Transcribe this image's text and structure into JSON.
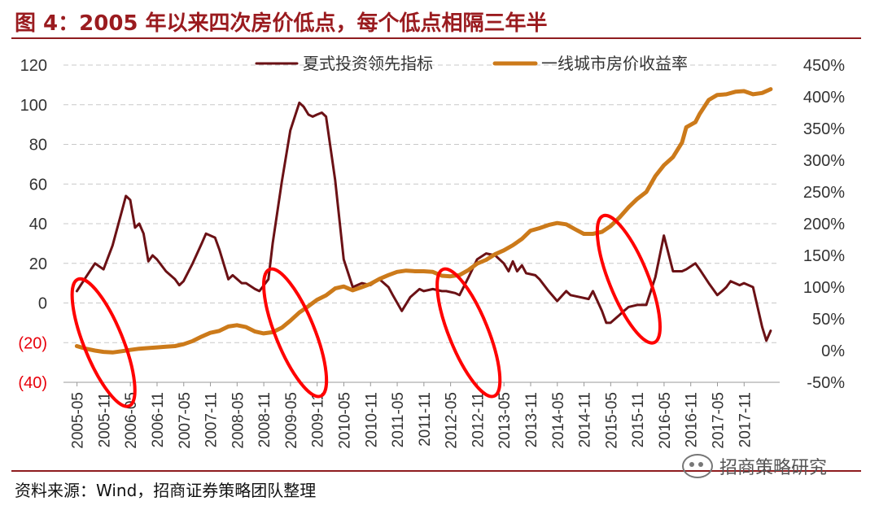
{
  "header": {
    "title": "图 4：2005 年以来四次房价低点，每个低点相隔三年半"
  },
  "footer": {
    "source": "资料来源：Wind，招商证券策略团队整理",
    "watermark": "招商策略研究"
  },
  "colors": {
    "title": "#9a1b1f",
    "rule": "#8f1c1f",
    "series_dark": "#6b1115",
    "series_orange": "#cc7a1a",
    "highlight": "#ff0000",
    "negative_tick": "#e8000b"
  },
  "chart_data": {
    "type": "line",
    "x": [
      "2005-05",
      "2005-11",
      "2006-05",
      "2006-11",
      "2007-05",
      "2007-11",
      "2008-05",
      "2008-11",
      "2009-05",
      "2009-11",
      "2010-05",
      "2010-11",
      "2011-05",
      "2011-11",
      "2012-05",
      "2012-11",
      "2013-05",
      "2013-11",
      "2014-05",
      "2014-11",
      "2015-05",
      "2015-11",
      "2016-05",
      "2016-11",
      "2017-05",
      "2017-11"
    ],
    "left_ticks": [
      "120",
      "100",
      "80",
      "60",
      "40",
      "20",
      "0",
      "(20)",
      "(40)"
    ],
    "right_ticks": [
      "450%",
      "400%",
      "350%",
      "300%",
      "250%",
      "200%",
      "150%",
      "100%",
      "50%",
      "0%",
      "-50%"
    ],
    "ylim_left": [
      -40,
      120
    ],
    "ylim_right": [
      -50,
      450
    ],
    "grid": "horizontal dashed",
    "legend_position": "top",
    "series": [
      {
        "name": "夏式投资领先指标",
        "axis": "left",
        "color": "#6b1115",
        "points": [
          [
            2005.33,
            6
          ],
          [
            2005.5,
            13
          ],
          [
            2005.67,
            20
          ],
          [
            2005.83,
            17
          ],
          [
            2006.0,
            29
          ],
          [
            2006.17,
            46
          ],
          [
            2006.25,
            54
          ],
          [
            2006.33,
            52
          ],
          [
            2006.42,
            38
          ],
          [
            2006.5,
            40
          ],
          [
            2006.58,
            35
          ],
          [
            2006.67,
            21
          ],
          [
            2006.75,
            24
          ],
          [
            2006.83,
            22
          ],
          [
            2007.0,
            16
          ],
          [
            2007.17,
            12
          ],
          [
            2007.25,
            9
          ],
          [
            2007.33,
            11
          ],
          [
            2007.5,
            20
          ],
          [
            2007.67,
            30
          ],
          [
            2007.75,
            35
          ],
          [
            2007.92,
            33
          ],
          [
            2008.0,
            27
          ],
          [
            2008.17,
            12
          ],
          [
            2008.25,
            14
          ],
          [
            2008.42,
            10
          ],
          [
            2008.5,
            10
          ],
          [
            2008.67,
            7
          ],
          [
            2008.75,
            6
          ],
          [
            2008.92,
            12
          ],
          [
            2009.0,
            30
          ],
          [
            2009.17,
            61
          ],
          [
            2009.33,
            87
          ],
          [
            2009.5,
            101
          ],
          [
            2009.58,
            99
          ],
          [
            2009.67,
            95
          ],
          [
            2009.75,
            94
          ],
          [
            2009.83,
            95
          ],
          [
            2009.92,
            96
          ],
          [
            2010.0,
            94
          ],
          [
            2010.17,
            62
          ],
          [
            2010.33,
            22
          ],
          [
            2010.5,
            8
          ],
          [
            2010.67,
            10
          ],
          [
            2010.83,
            9
          ],
          [
            2011.0,
            12
          ],
          [
            2011.17,
            8
          ],
          [
            2011.25,
            4
          ],
          [
            2011.42,
            -4
          ],
          [
            2011.58,
            3
          ],
          [
            2011.75,
            7
          ],
          [
            2011.83,
            6
          ],
          [
            2012.0,
            7
          ],
          [
            2012.17,
            6
          ],
          [
            2012.25,
            6
          ],
          [
            2012.42,
            5
          ],
          [
            2012.5,
            4
          ],
          [
            2012.67,
            13
          ],
          [
            2012.83,
            22
          ],
          [
            2013.0,
            25
          ],
          [
            2013.17,
            24
          ],
          [
            2013.33,
            20
          ],
          [
            2013.42,
            16
          ],
          [
            2013.5,
            21
          ],
          [
            2013.58,
            16
          ],
          [
            2013.67,
            19
          ],
          [
            2013.75,
            15
          ],
          [
            2013.92,
            14
          ],
          [
            2014.0,
            12
          ],
          [
            2014.17,
            6
          ],
          [
            2014.33,
            1
          ],
          [
            2014.5,
            6
          ],
          [
            2014.58,
            4
          ],
          [
            2014.75,
            3
          ],
          [
            2014.92,
            2
          ],
          [
            2015.0,
            6
          ],
          [
            2015.17,
            -4
          ],
          [
            2015.25,
            -10
          ],
          [
            2015.33,
            -10
          ],
          [
            2015.5,
            -6
          ],
          [
            2015.58,
            -4
          ],
          [
            2015.67,
            -2
          ],
          [
            2015.83,
            -1
          ],
          [
            2016.0,
            -1
          ],
          [
            2016.17,
            13
          ],
          [
            2016.33,
            34
          ],
          [
            2016.5,
            16
          ],
          [
            2016.67,
            16
          ],
          [
            2016.75,
            17
          ],
          [
            2016.92,
            20
          ],
          [
            2017.0,
            17
          ],
          [
            2017.17,
            10
          ],
          [
            2017.33,
            4
          ],
          [
            2017.42,
            6
          ],
          [
            2017.5,
            8
          ],
          [
            2017.58,
            11
          ],
          [
            2017.75,
            9
          ],
          [
            2017.83,
            10
          ],
          [
            2018.0,
            8
          ],
          [
            2018.17,
            -12
          ],
          [
            2018.25,
            -19
          ],
          [
            2018.33,
            -14
          ]
        ]
      },
      {
        "name": "一线城市房价收益率",
        "axis": "right",
        "color": "#cc7a1a",
        "points": [
          [
            2005.33,
            7
          ],
          [
            2005.5,
            3
          ],
          [
            2005.67,
            0
          ],
          [
            2005.83,
            -2
          ],
          [
            2006.0,
            -3
          ],
          [
            2006.17,
            -1
          ],
          [
            2006.33,
            1
          ],
          [
            2006.5,
            3
          ],
          [
            2006.67,
            4
          ],
          [
            2006.83,
            5
          ],
          [
            2007.0,
            6
          ],
          [
            2007.17,
            7
          ],
          [
            2007.33,
            10
          ],
          [
            2007.5,
            15
          ],
          [
            2007.67,
            22
          ],
          [
            2007.83,
            28
          ],
          [
            2008.0,
            31
          ],
          [
            2008.17,
            38
          ],
          [
            2008.33,
            40
          ],
          [
            2008.5,
            37
          ],
          [
            2008.67,
            30
          ],
          [
            2008.83,
            27
          ],
          [
            2009.0,
            29
          ],
          [
            2009.17,
            36
          ],
          [
            2009.33,
            47
          ],
          [
            2009.5,
            60
          ],
          [
            2009.67,
            70
          ],
          [
            2009.83,
            80
          ],
          [
            2010.0,
            87
          ],
          [
            2010.17,
            98
          ],
          [
            2010.33,
            101
          ],
          [
            2010.5,
            95
          ],
          [
            2010.67,
            100
          ],
          [
            2010.83,
            105
          ],
          [
            2011.0,
            113
          ],
          [
            2011.17,
            119
          ],
          [
            2011.33,
            124
          ],
          [
            2011.5,
            126
          ],
          [
            2011.67,
            125
          ],
          [
            2011.83,
            125
          ],
          [
            2012.0,
            124
          ],
          [
            2012.17,
            118
          ],
          [
            2012.33,
            117
          ],
          [
            2012.5,
            119
          ],
          [
            2012.67,
            127
          ],
          [
            2012.83,
            137
          ],
          [
            2013.0,
            143
          ],
          [
            2013.17,
            152
          ],
          [
            2013.33,
            158
          ],
          [
            2013.5,
            166
          ],
          [
            2013.67,
            176
          ],
          [
            2013.83,
            189
          ],
          [
            2014.0,
            193
          ],
          [
            2014.17,
            198
          ],
          [
            2014.33,
            201
          ],
          [
            2014.5,
            199
          ],
          [
            2014.67,
            191
          ],
          [
            2014.83,
            184
          ],
          [
            2015.0,
            184
          ],
          [
            2015.17,
            187
          ],
          [
            2015.33,
            196
          ],
          [
            2015.5,
            210
          ],
          [
            2015.67,
            226
          ],
          [
            2015.83,
            239
          ],
          [
            2016.0,
            250
          ],
          [
            2016.17,
            275
          ],
          [
            2016.33,
            292
          ],
          [
            2016.5,
            305
          ],
          [
            2016.67,
            328
          ],
          [
            2016.75,
            352
          ],
          [
            2016.92,
            360
          ],
          [
            2017.0,
            373
          ],
          [
            2017.17,
            395
          ],
          [
            2017.33,
            403
          ],
          [
            2017.5,
            404
          ],
          [
            2017.67,
            408
          ],
          [
            2017.83,
            409
          ],
          [
            2018.0,
            404
          ],
          [
            2018.17,
            406
          ],
          [
            2018.33,
            412
          ]
        ]
      }
    ],
    "annotations": [
      {
        "type": "ellipse",
        "center": [
          2005.83,
          -20
        ],
        "note": "highlight"
      },
      {
        "type": "ellipse",
        "center": [
          2009.42,
          -15
        ],
        "note": "highlight"
      },
      {
        "type": "ellipse",
        "center": [
          2012.67,
          -15
        ],
        "note": "highlight"
      },
      {
        "type": "ellipse",
        "center": [
          2015.67,
          12
        ],
        "note": "highlight"
      }
    ]
  }
}
